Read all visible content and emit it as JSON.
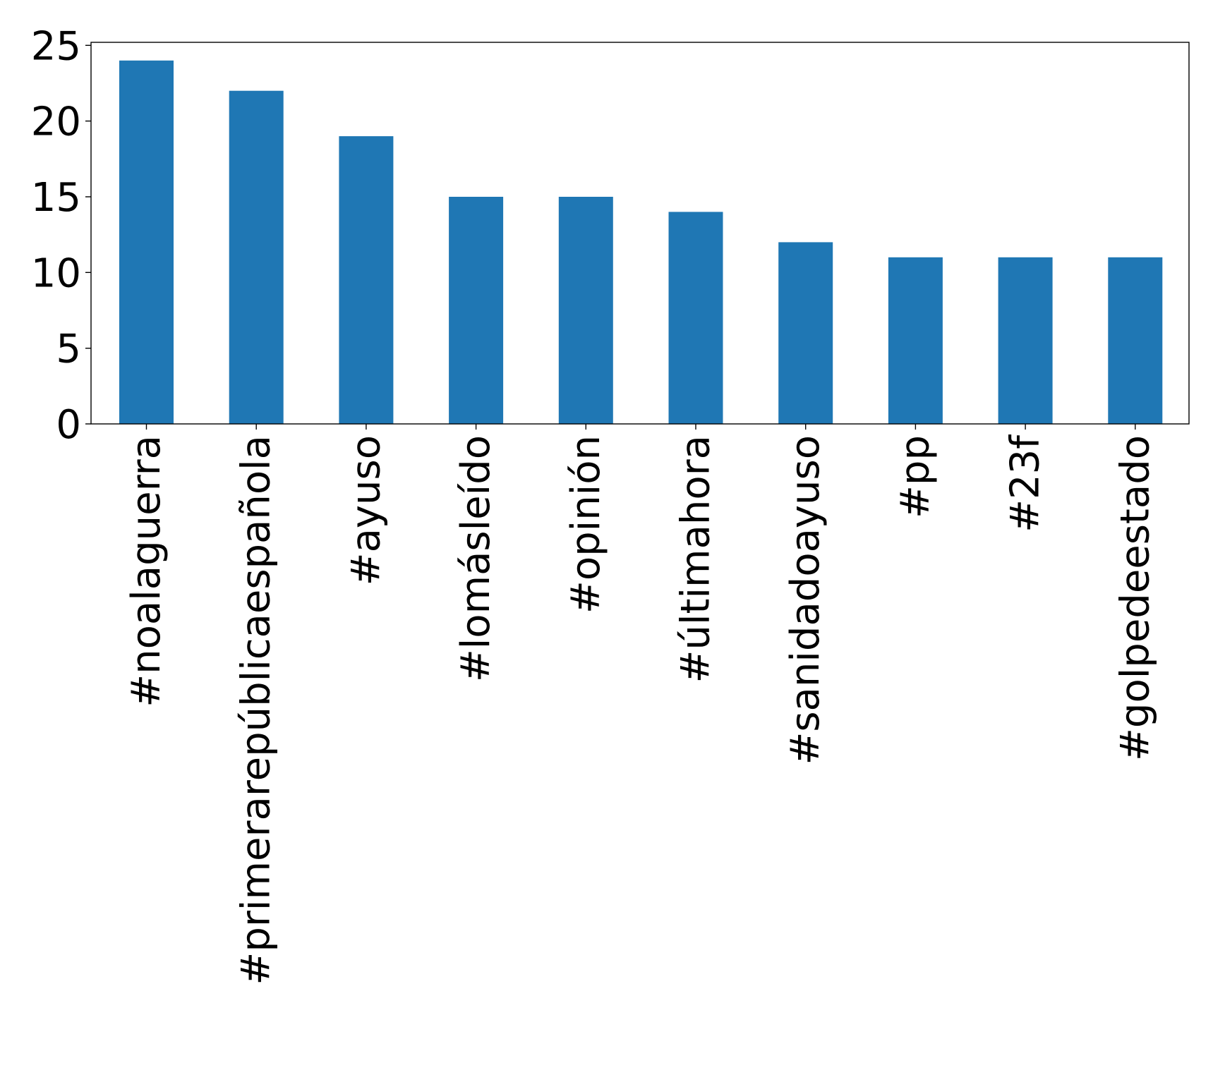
{
  "chart_data": {
    "type": "bar",
    "title": "",
    "xlabel": "",
    "ylabel": "",
    "categories": [
      "#noalaguerra",
      "#primerarepúblicaespañola",
      "#ayuso",
      "#lomásleído",
      "#opinión",
      "#últimahora",
      "#sanidadoayuso",
      "#pp",
      "#23f",
      "#golpedeestado"
    ],
    "values": [
      24,
      22,
      19,
      15,
      15,
      14,
      12,
      11,
      11,
      11
    ],
    "ylim": [
      0,
      25.2
    ],
    "yticks": [
      0,
      5,
      10,
      15,
      20,
      25
    ],
    "grid": false,
    "legend": "none",
    "bar_color": "#1f77b4",
    "axis_color": "#000000"
  }
}
